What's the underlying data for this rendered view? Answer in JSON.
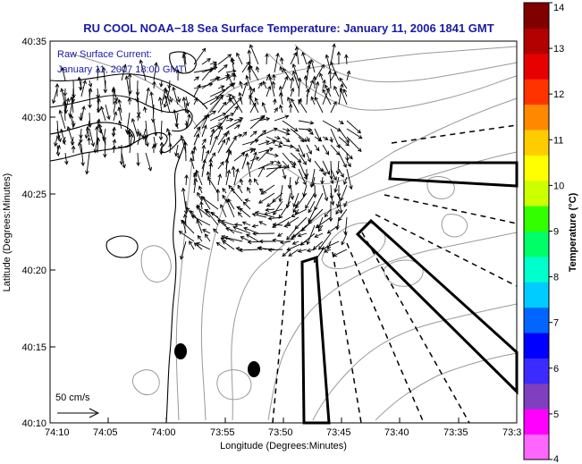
{
  "title": "RU COOL  NOAA−18  Sea Surface Temperature:  January 11, 2006 1841 GMT",
  "subtitle_line1": "Raw Surface Current:",
  "subtitle_line2": "January 11, 2007 18:00 GMT",
  "scale_label": "50 cm/s",
  "xlabel": "Longitude (Degrees:Minutes)",
  "ylabel": "Latitude (Degrees:Minutes)",
  "colorbar_label": "Temperature (°C)",
  "x_ticks": [
    "74:10",
    "74:05",
    "74:00",
    "73:55",
    "73:50",
    "73:45",
    "73:40",
    "73:35",
    "73:3"
  ],
  "y_ticks": [
    "40:35",
    "40:30",
    "40:25",
    "40:20",
    "40:15",
    "40:10"
  ],
  "colorbar_ticks": [
    "14",
    "13",
    "12",
    "11",
    "10",
    "9",
    "8",
    "7",
    "6",
    "5",
    "4"
  ],
  "colorbar_colors": [
    "#ff66ff",
    "#ff00ff",
    "#7f3fbf",
    "#3b2bff",
    "#0000ff",
    "#0066ff",
    "#00ccff",
    "#00ffcc",
    "#00ff66",
    "#33ff00",
    "#ccff00",
    "#ffff00",
    "#ffcc00",
    "#ff8800",
    "#ff3300",
    "#e60000",
    "#b30000",
    "#800000"
  ],
  "colors": {
    "title": "#1a1aa6",
    "contour": "#999999",
    "coast": "#000000"
  }
}
